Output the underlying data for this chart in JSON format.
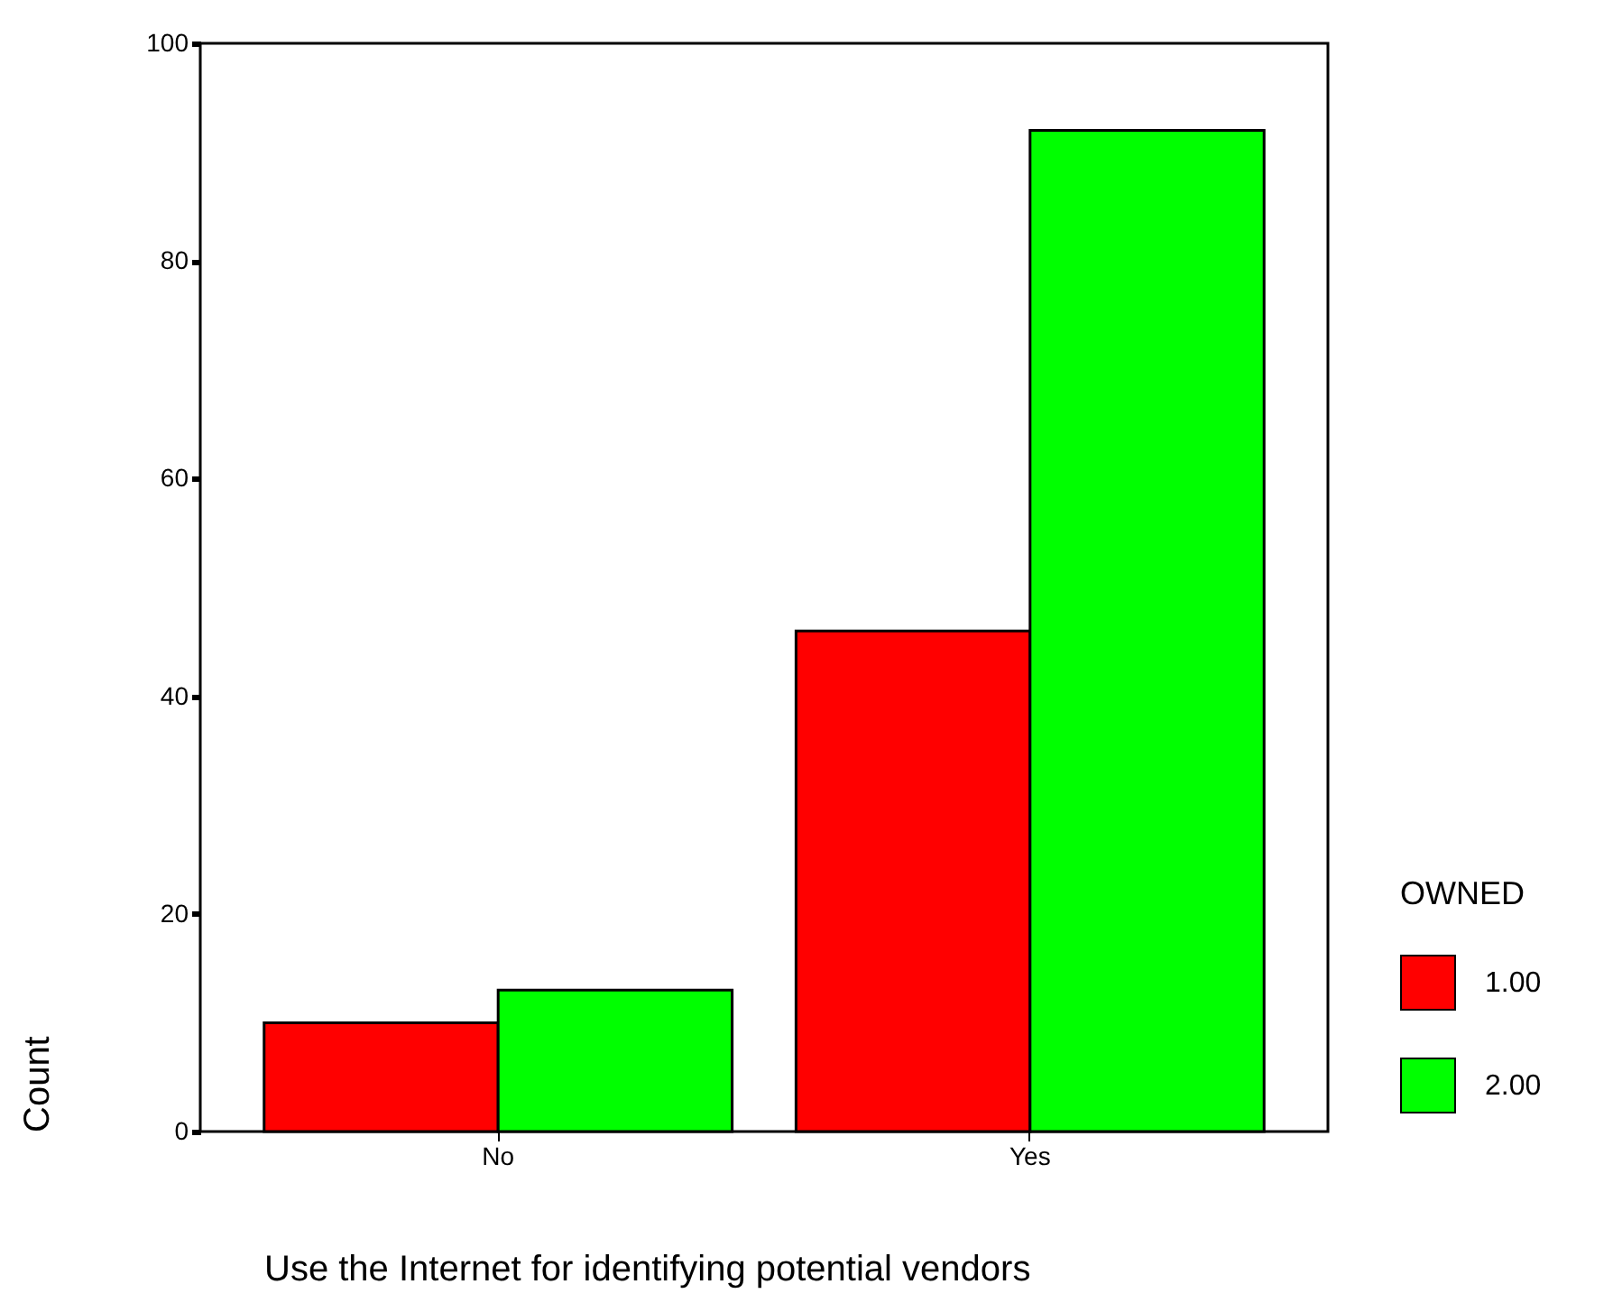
{
  "chart_data": {
    "type": "bar",
    "xlabel": "Use the Internet for identifying potential vendors",
    "ylabel": "Count",
    "legend_title": "OWNED",
    "categories": [
      "No",
      "Yes"
    ],
    "series": [
      {
        "name": "1.00",
        "color": "#ff0000",
        "values": [
          10,
          46
        ]
      },
      {
        "name": "2.00",
        "color": "#00ff00",
        "values": [
          13,
          92
        ]
      }
    ],
    "ylim": [
      0,
      100
    ],
    "yticks": [
      0,
      20,
      40,
      60,
      80,
      100
    ],
    "grid": false,
    "legend": "right"
  }
}
